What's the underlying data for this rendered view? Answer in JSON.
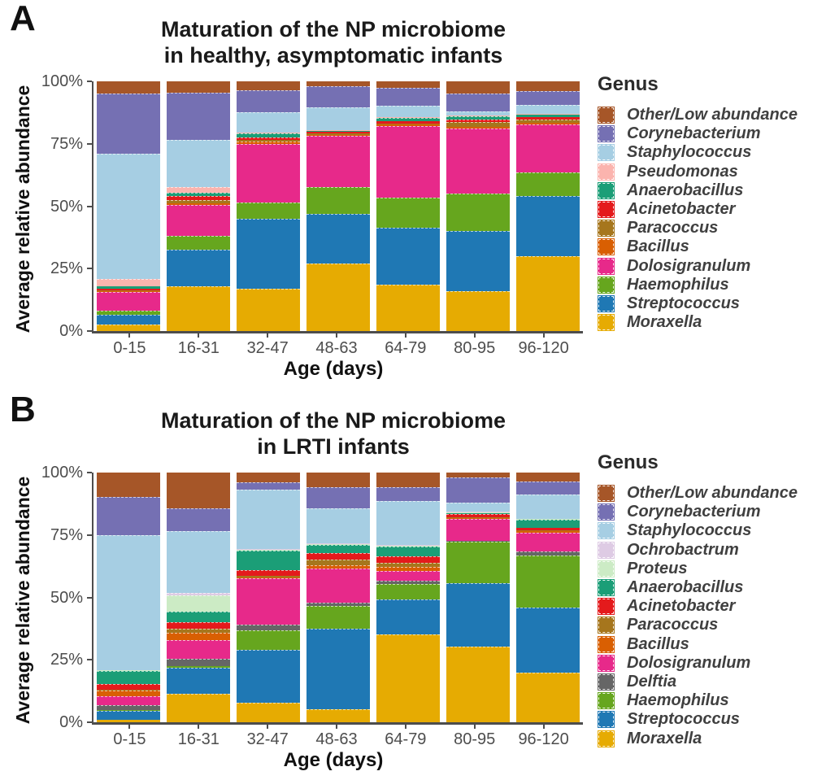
{
  "panels": [
    {
      "label": "A",
      "title_line1": "Maturation of the NP microbiome",
      "title_line2": "in healthy, asymptomatic infants",
      "ylabel": "Average relative abundance",
      "xlabel": "Age (days)"
    },
    {
      "label": "B",
      "title_line1": "Maturation of the NP microbiome",
      "title_line2": "in LRTI infants",
      "ylabel": "Average relative abundance",
      "xlabel": "Age (days)"
    }
  ],
  "chart_data": [
    {
      "type": "bar",
      "stacked": true,
      "title": "Maturation of the NP microbiome in healthy, asymptomatic infants",
      "xlabel": "Age (days)",
      "ylabel": "Average relative abundance",
      "categories": [
        "0-15",
        "16-31",
        "32-47",
        "48-63",
        "64-79",
        "80-95",
        "96-120"
      ],
      "ylim": [
        0,
        100
      ],
      "yticks": [
        "0%",
        "25%",
        "50%",
        "75%",
        "100%"
      ],
      "grid": false,
      "legend_title": "Genus",
      "legend_position": "right",
      "series": [
        {
          "name": "Other/Low abundance",
          "color": "#A65628",
          "values": [
            5.0,
            4.5,
            3.5,
            2.0,
            2.5,
            5.0,
            3.8
          ]
        },
        {
          "name": "Corynebacterium",
          "color": "#7570B3",
          "values": [
            24.0,
            19.0,
            9.0,
            8.5,
            7.2,
            7.0,
            5.6
          ]
        },
        {
          "name": "Staphylococcus",
          "color": "#A6CEE3",
          "values": [
            50.0,
            19.0,
            8.0,
            9.0,
            4.5,
            1.7,
            3.5
          ]
        },
        {
          "name": "Pseudomonas",
          "color": "#FBB4AE",
          "values": [
            3.2,
            2.0,
            0.5,
            0.4,
            0.4,
            0.3,
            0.6
          ]
        },
        {
          "name": "Anaerobacillus",
          "color": "#1B9E77",
          "values": [
            0.8,
            1.5,
            1.5,
            0.4,
            1.4,
            1.3,
            0.8
          ]
        },
        {
          "name": "Acinetobacter",
          "color": "#E41A1C",
          "values": [
            0.6,
            1.7,
            1.0,
            0.7,
            0.8,
            1.0,
            0.9
          ]
        },
        {
          "name": "Paracoccus",
          "color": "#A6761D",
          "values": [
            0.4,
            1.3,
            0.5,
            0.5,
            0.6,
            2.0,
            1.5
          ]
        },
        {
          "name": "Bacillus",
          "color": "#D95F02",
          "values": [
            0.5,
            0.5,
            1.0,
            0.5,
            0.6,
            0.7,
            0.5
          ]
        },
        {
          "name": "Dolosigranulum",
          "color": "#E7298A",
          "values": [
            7.5,
            12.5,
            23.5,
            20.5,
            28.5,
            26.0,
            19.3
          ]
        },
        {
          "name": "Haemophilus",
          "color": "#66A61E",
          "values": [
            1.5,
            5.5,
            6.5,
            10.5,
            12.0,
            15.0,
            9.5
          ]
        },
        {
          "name": "Streptococcus",
          "color": "#1F78B4",
          "values": [
            4.0,
            14.5,
            28.0,
            20.0,
            23.0,
            24.0,
            24.0
          ]
        },
        {
          "name": "Moraxella",
          "color": "#E6AB02",
          "values": [
            2.5,
            18.0,
            17.0,
            27.0,
            18.5,
            16.0,
            30.0
          ]
        }
      ]
    },
    {
      "type": "bar",
      "stacked": true,
      "title": "Maturation of the NP microbiome in LRTI infants",
      "xlabel": "Age (days)",
      "ylabel": "Average relative abundance",
      "categories": [
        "0-15",
        "16-31",
        "32-47",
        "48-63",
        "64-79",
        "80-95",
        "96-120"
      ],
      "ylim": [
        0,
        100
      ],
      "yticks": [
        "0%",
        "25%",
        "50%",
        "75%",
        "100%"
      ],
      "grid": false,
      "legend_title": "Genus",
      "legend_position": "right",
      "series": [
        {
          "name": "Other/Low abundance",
          "color": "#A65628",
          "values": [
            9.7,
            14.3,
            4.0,
            5.8,
            5.8,
            2.0,
            3.5
          ]
        },
        {
          "name": "Corynebacterium",
          "color": "#7570B3",
          "values": [
            15.5,
            9.0,
            3.0,
            8.4,
            5.7,
            10.2,
            5.4
          ]
        },
        {
          "name": "Staphylococcus",
          "color": "#A6CEE3",
          "values": [
            53.8,
            24.9,
            23.7,
            14.2,
            17.6,
            3.6,
            9.6
          ]
        },
        {
          "name": "Ochrobactrum",
          "color": "#DECBE4",
          "values": [
            0.2,
            1.0,
            0.3,
            0.3,
            0.2,
            0.2,
            0.2
          ]
        },
        {
          "name": "Proteus",
          "color": "#CCEBC5",
          "values": [
            0.3,
            6.5,
            0.3,
            0.3,
            0.2,
            0.2,
            0.2
          ]
        },
        {
          "name": "Anaerobacillus",
          "color": "#1B9E77",
          "values": [
            5.2,
            4.3,
            7.7,
            3.3,
            4.1,
            0.4,
            3.3
          ]
        },
        {
          "name": "Acinetobacter",
          "color": "#E41A1C",
          "values": [
            2.2,
            2.5,
            2.5,
            2.5,
            2.6,
            1.4,
            0.9
          ]
        },
        {
          "name": "Paracoccus",
          "color": "#A6761D",
          "values": [
            0.5,
            1.6,
            0.4,
            2.2,
            1.7,
            0.3,
            0.4
          ]
        },
        {
          "name": "Bacillus",
          "color": "#D95F02",
          "values": [
            2.2,
            3.0,
            0.4,
            1.5,
            1.5,
            0.4,
            0.6
          ]
        },
        {
          "name": "Dolosigranulum",
          "color": "#E7298A",
          "values": [
            3.5,
            7.6,
            18.6,
            13.8,
            3.9,
            8.7,
            7.6
          ]
        },
        {
          "name": "Delftia",
          "color": "#666666",
          "values": [
            2.0,
            2.9,
            2.2,
            1.1,
            1.5,
            0.3,
            1.4
          ]
        },
        {
          "name": "Haemophilus",
          "color": "#66A61E",
          "values": [
            0.3,
            0.5,
            7.9,
            9.2,
            6.1,
            16.7,
            21.0
          ]
        },
        {
          "name": "Streptococcus",
          "color": "#1F78B4",
          "values": [
            3.8,
            10.6,
            21.3,
            32.3,
            13.8,
            25.2,
            26.1
          ]
        },
        {
          "name": "Moraxella",
          "color": "#E6AB02",
          "values": [
            0.8,
            11.3,
            7.7,
            5.1,
            35.3,
            30.4,
            19.8
          ]
        }
      ]
    }
  ]
}
